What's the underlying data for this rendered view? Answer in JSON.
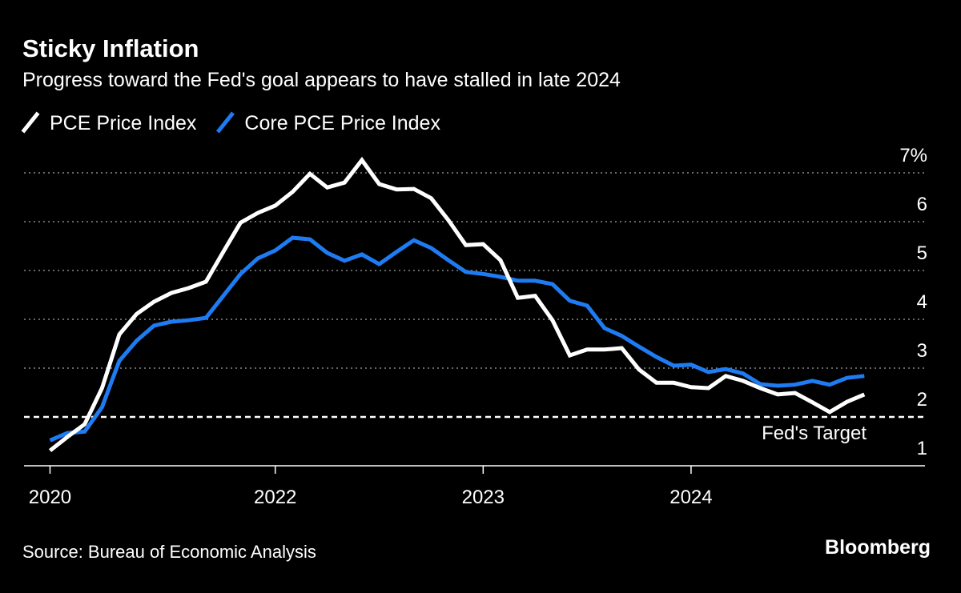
{
  "chart_data": {
    "type": "line",
    "title": "Sticky Inflation",
    "subtitle": "Progress toward the Fed's goal appears to have stalled in late 2024",
    "source": "Source: Bureau of Economic Analysis",
    "brand": "Bloomberg",
    "annotation": "Fed's Target",
    "target": 2,
    "x": [
      0,
      1,
      2,
      3,
      4,
      5,
      6,
      7,
      8,
      9,
      10,
      11,
      12,
      13,
      14,
      15,
      16,
      17,
      18,
      19,
      20,
      21,
      22,
      23,
      24,
      25,
      26,
      27,
      28,
      29,
      30,
      31,
      32,
      33,
      34,
      35,
      36,
      37,
      38,
      39,
      40,
      41,
      42,
      43,
      44,
      45,
      46,
      47
    ],
    "xlim": [
      -1.5,
      50.5
    ],
    "xticks": [
      {
        "value": 0,
        "label": "2020"
      },
      {
        "value": 13,
        "label": "2022"
      },
      {
        "value": 25,
        "label": "2023"
      },
      {
        "value": 37,
        "label": "2024"
      }
    ],
    "ylim": [
      1,
      7
    ],
    "yticks": [
      1,
      2,
      3,
      4,
      5,
      6,
      {
        "value": 7,
        "label": "7%"
      }
    ],
    "grid": true,
    "series": [
      {
        "name": "PCE Price Index",
        "color": "#ffffff",
        "values": [
          1.31,
          1.59,
          1.85,
          2.59,
          3.69,
          4.11,
          4.36,
          4.54,
          4.64,
          4.77,
          5.38,
          5.98,
          6.18,
          6.33,
          6.61,
          6.98,
          6.7,
          6.8,
          7.26,
          6.77,
          6.66,
          6.67,
          6.48,
          6.03,
          5.52,
          5.54,
          5.21,
          4.44,
          4.48,
          3.98,
          3.26,
          3.38,
          3.38,
          3.41,
          2.97,
          2.7,
          2.7,
          2.61,
          2.59,
          2.84,
          2.74,
          2.59,
          2.46,
          2.49,
          2.3,
          2.1,
          2.31,
          2.46
        ]
      },
      {
        "name": "Core PCE Price Index",
        "color": "#1f7bf2",
        "values": [
          1.52,
          1.67,
          1.7,
          2.2,
          3.15,
          3.56,
          3.87,
          3.95,
          3.98,
          4.03,
          4.48,
          4.93,
          5.25,
          5.41,
          5.67,
          5.64,
          5.36,
          5.2,
          5.33,
          5.13,
          5.38,
          5.62,
          5.46,
          5.21,
          4.97,
          4.93,
          4.87,
          4.79,
          4.79,
          4.72,
          4.38,
          4.28,
          3.82,
          3.66,
          3.44,
          3.23,
          3.05,
          3.07,
          2.92,
          2.98,
          2.89,
          2.67,
          2.64,
          2.66,
          2.74,
          2.66,
          2.8,
          2.84
        ]
      }
    ]
  }
}
